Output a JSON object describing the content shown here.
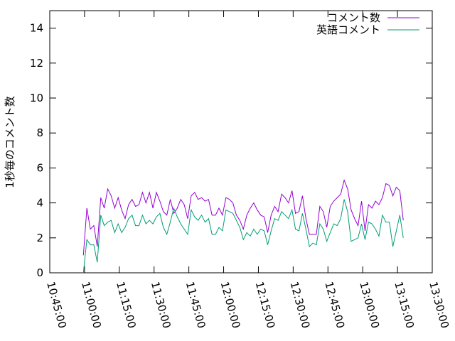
{
  "chart_data": {
    "type": "line",
    "y_label": "1秒毎のコメント数",
    "legend": "top right",
    "xlim": [
      "10:45:00",
      "13:30:00"
    ],
    "xticks": [
      "10:45:00",
      "11:00:00",
      "11:15:00",
      "11:30:00",
      "11:45:00",
      "12:00:00",
      "12:15:00",
      "12:30:00",
      "12:45:00",
      "13:00:00",
      "13:15:00",
      "13:30:00"
    ],
    "ylim": [
      0,
      15
    ],
    "yticks": [
      0,
      2,
      4,
      6,
      8,
      10,
      12,
      14
    ],
    "x": [
      "10:59:30",
      "11:01:00",
      "11:02:30",
      "11:04:00",
      "11:05:30",
      "11:07:00",
      "11:08:30",
      "11:10:00",
      "11:11:30",
      "11:13:00",
      "11:14:30",
      "11:16:00",
      "11:17:30",
      "11:19:00",
      "11:20:30",
      "11:22:00",
      "11:23:30",
      "11:25:00",
      "11:26:30",
      "11:28:00",
      "11:29:30",
      "11:31:00",
      "11:32:30",
      "11:34:00",
      "11:35:30",
      "11:37:00",
      "11:38:30",
      "11:40:00",
      "11:41:30",
      "11:43:00",
      "11:44:30",
      "11:46:00",
      "11:47:30",
      "11:49:00",
      "11:50:30",
      "11:52:00",
      "11:53:30",
      "11:55:00",
      "11:56:30",
      "11:58:00",
      "11:59:30",
      "12:01:00",
      "12:02:30",
      "12:04:00",
      "12:05:30",
      "12:07:00",
      "12:08:30",
      "12:10:00",
      "12:11:30",
      "12:13:00",
      "12:14:30",
      "12:16:00",
      "12:17:30",
      "12:19:00",
      "12:20:30",
      "12:22:00",
      "12:23:30",
      "12:25:00",
      "12:26:30",
      "12:28:00",
      "12:29:30",
      "12:31:00",
      "12:32:30",
      "12:34:00",
      "12:35:30",
      "12:37:00",
      "12:38:30",
      "12:40:00",
      "12:41:30",
      "12:43:00",
      "12:44:30",
      "12:46:00",
      "12:47:30",
      "12:49:00",
      "12:50:30",
      "12:52:00",
      "12:53:30",
      "12:55:00",
      "12:56:30",
      "12:58:00",
      "12:59:30",
      "13:01:00",
      "13:02:30",
      "13:04:00",
      "13:05:30",
      "13:07:00",
      "13:08:30",
      "13:10:00",
      "13:11:30",
      "13:13:00",
      "13:14:30",
      "13:16:00",
      "13:17:30"
    ],
    "series": [
      {
        "name": "コメント数",
        "color": "#9400d3",
        "values": [
          1.0,
          3.7,
          2.5,
          2.7,
          1.5,
          4.3,
          3.7,
          4.8,
          4.4,
          3.7,
          4.3,
          3.6,
          3.1,
          3.9,
          4.2,
          3.8,
          3.9,
          4.6,
          4.0,
          4.6,
          3.7,
          4.6,
          4.1,
          3.5,
          3.3,
          4.2,
          3.4,
          3.7,
          4.2,
          3.9,
          3.1,
          4.4,
          4.6,
          4.2,
          4.3,
          4.1,
          4.2,
          3.3,
          3.3,
          3.7,
          3.3,
          4.3,
          4.2,
          4.0,
          3.3,
          3.0,
          2.5,
          3.3,
          3.7,
          4.0,
          3.6,
          3.3,
          3.2,
          2.3,
          3.3,
          3.8,
          3.5,
          4.5,
          4.3,
          4.0,
          4.7,
          3.4,
          3.5,
          4.4,
          3.1,
          2.2,
          2.2,
          2.2,
          3.8,
          3.5,
          2.6,
          3.8,
          4.1,
          4.3,
          4.5,
          5.3,
          4.8,
          3.6,
          3.1,
          2.7,
          4.1,
          2.4,
          3.9,
          3.7,
          4.1,
          3.9,
          4.3,
          5.1,
          5.0,
          4.4,
          4.9,
          4.7,
          3.0
        ]
      },
      {
        "name": "英語コメント",
        "color": "#009e73",
        "values": [
          0.0,
          1.9,
          1.6,
          1.6,
          0.6,
          3.3,
          2.7,
          2.9,
          3.0,
          2.3,
          2.8,
          2.3,
          2.6,
          3.1,
          3.3,
          2.7,
          2.7,
          3.3,
          2.8,
          3.0,
          2.8,
          3.2,
          3.4,
          2.6,
          2.2,
          2.9,
          3.7,
          3.2,
          2.8,
          2.5,
          2.2,
          3.6,
          3.2,
          3.0,
          3.3,
          2.9,
          3.1,
          2.2,
          2.2,
          2.6,
          2.4,
          3.6,
          3.5,
          3.4,
          3.0,
          2.6,
          1.9,
          2.3,
          2.1,
          2.5,
          2.2,
          2.5,
          2.4,
          1.6,
          2.4,
          3.1,
          3.0,
          3.5,
          3.3,
          3.1,
          3.6,
          2.5,
          2.4,
          3.4,
          2.5,
          1.5,
          1.7,
          1.6,
          2.8,
          2.5,
          1.8,
          2.3,
          2.8,
          2.7,
          3.1,
          4.2,
          3.5,
          1.8,
          1.9,
          2.0,
          2.8,
          1.9,
          2.9,
          2.8,
          2.5,
          2.1,
          3.3,
          2.9,
          2.9,
          1.5,
          2.4,
          3.3,
          2.0
        ]
      }
    ]
  }
}
